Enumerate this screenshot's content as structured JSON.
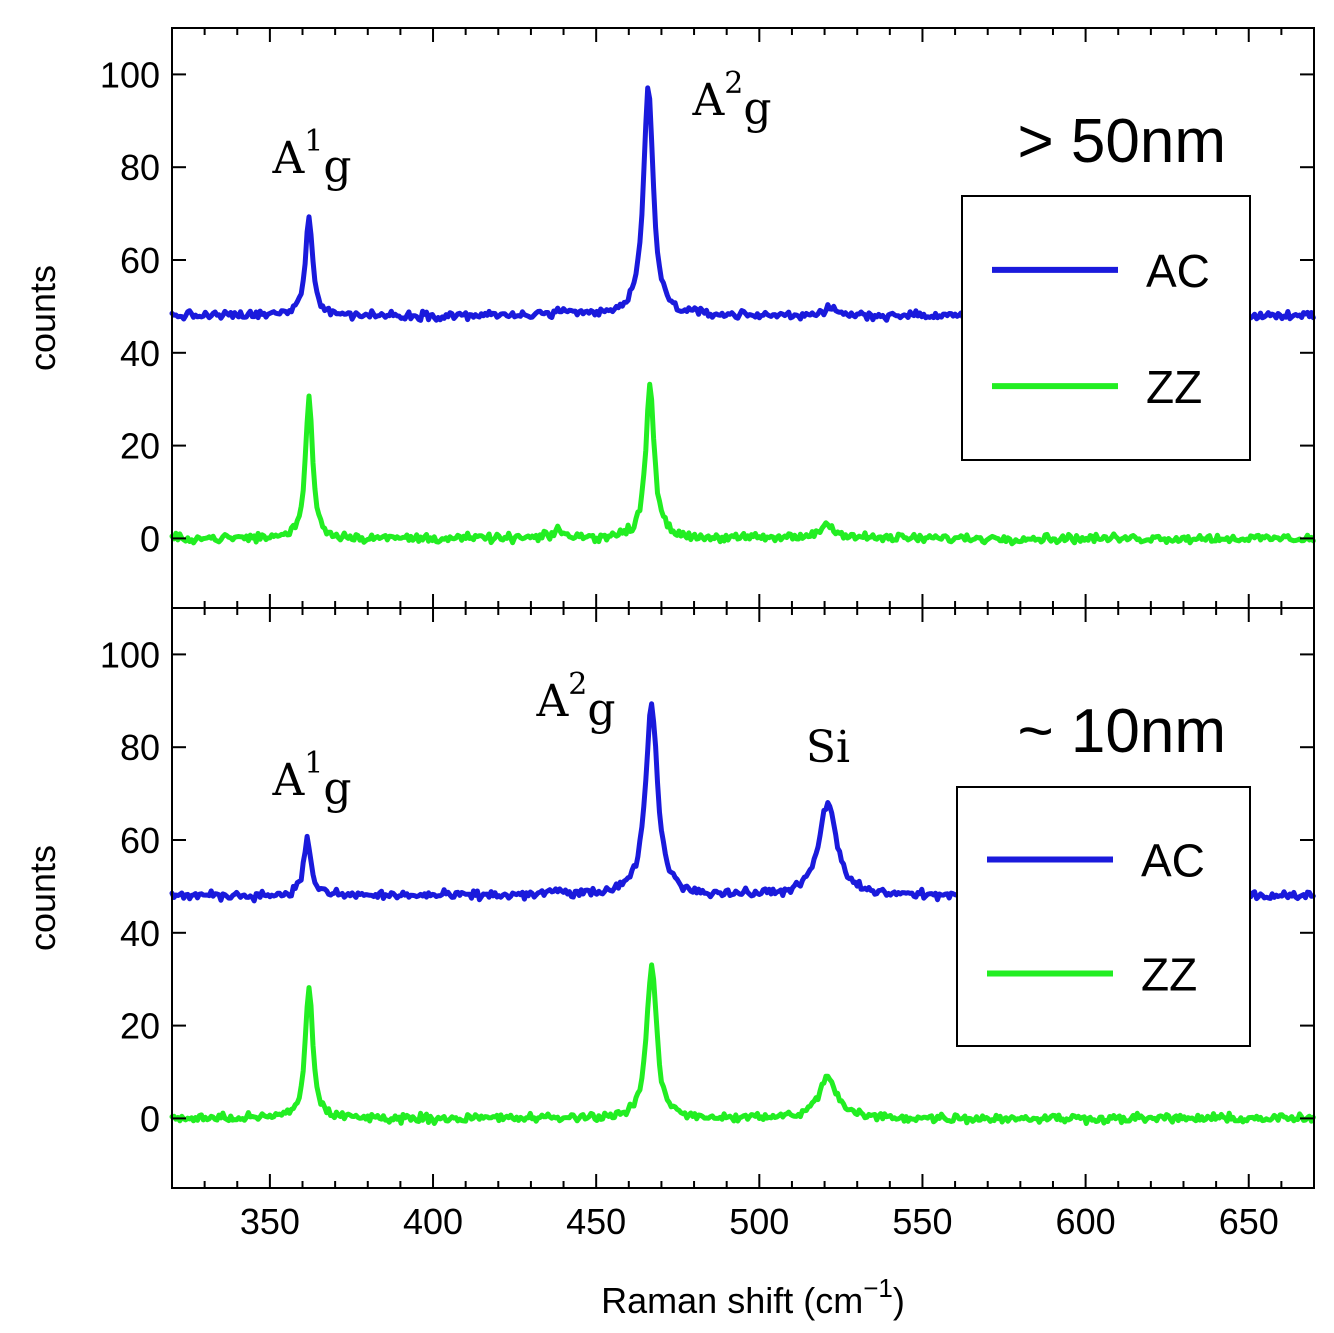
{
  "chart_data": [
    {
      "type": "line",
      "panel_label": "> 50nm",
      "ylabel": "counts",
      "xlim": [
        320,
        670
      ],
      "ylim": [
        -15,
        110
      ],
      "yticks": [
        0,
        20,
        40,
        60,
        80,
        100
      ],
      "legend": {
        "position": "right",
        "entries": [
          "AC",
          "ZZ"
        ]
      },
      "colors": {
        "AC": "#1a1adc",
        "ZZ": "#22ee22"
      },
      "annotations": [
        {
          "base": "A",
          "sup": "1",
          "sub": "g",
          "x": 362,
          "y": 72
        },
        {
          "base": "A",
          "sup": "2",
          "sub": "g",
          "x": 475,
          "y": 99
        }
      ],
      "series": [
        {
          "name": "AC",
          "baseline": 48,
          "peaks": [
            {
              "center": 362,
              "height": 21,
              "width": 1.4
            },
            {
              "center": 438.5,
              "height": 1,
              "width": 1.5
            },
            {
              "center": 466,
              "height": 49,
              "width": 1.8
            },
            {
              "center": 521,
              "height": 1.2,
              "width": 3
            }
          ]
        },
        {
          "name": "ZZ",
          "baseline": 0,
          "peaks": [
            {
              "center": 362,
              "height": 31,
              "width": 1.3
            },
            {
              "center": 438.5,
              "height": 2,
              "width": 1.5
            },
            {
              "center": 466.5,
              "height": 33,
              "width": 1.6
            },
            {
              "center": 521,
              "height": 3,
              "width": 3
            }
          ]
        }
      ]
    },
    {
      "type": "line",
      "panel_label": "~ 10nm",
      "ylabel": "counts",
      "xlabel": "Raman shift (cm⁻¹)",
      "xlim": [
        320,
        670
      ],
      "ylim": [
        -15,
        110
      ],
      "xticks": [
        350,
        400,
        450,
        500,
        550,
        600,
        650
      ],
      "yticks": [
        0,
        20,
        40,
        60,
        80,
        100
      ],
      "legend": {
        "position": "right",
        "entries": [
          "AC",
          "ZZ"
        ]
      },
      "colors": {
        "AC": "#1a1adc",
        "ZZ": "#22ee22"
      },
      "annotations": [
        {
          "base": "A",
          "sup": "1",
          "sub": "g",
          "x": 362,
          "y": 72
        },
        {
          "base": "A",
          "sup": "2",
          "sub": "g",
          "x": 450,
          "y": 90
        },
        {
          "base": "Si",
          "sup": "",
          "sub": "",
          "x": 520.5,
          "y": 80
        }
      ],
      "series": [
        {
          "name": "AC",
          "baseline": 48,
          "peaks": [
            {
              "center": 361.5,
              "height": 12,
              "width": 1.4
            },
            {
              "center": 438,
              "height": 1,
              "width": 2
            },
            {
              "center": 467,
              "height": 41,
              "width": 2.2
            },
            {
              "center": 521,
              "height": 20,
              "width": 3.2
            }
          ]
        },
        {
          "name": "ZZ",
          "baseline": 0,
          "peaks": [
            {
              "center": 362,
              "height": 28,
              "width": 1.4
            },
            {
              "center": 467,
              "height": 33,
              "width": 1.8
            },
            {
              "center": 521,
              "height": 9,
              "width": 3.2
            }
          ]
        }
      ]
    }
  ]
}
